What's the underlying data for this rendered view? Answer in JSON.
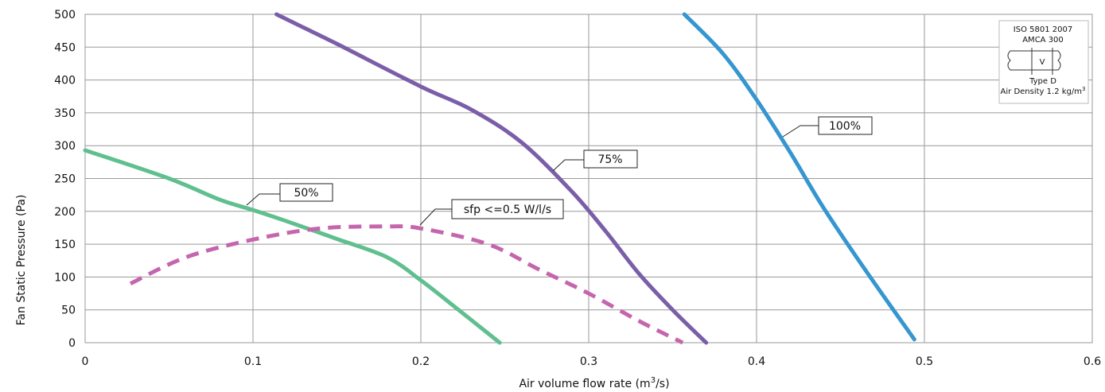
{
  "chart_data": {
    "type": "line",
    "title": "",
    "xlabel": "Air volume flow rate (m",
    "xlabel_sup": "3",
    "xlabel_end": "/s)",
    "ylabel": "Fan Static Pressure (Pa)",
    "xlim": [
      0,
      0.6
    ],
    "ylim": [
      0,
      500
    ],
    "x_ticks": [
      "0",
      "0.1",
      "0.2",
      "0.3",
      "0.4",
      "0.5",
      "0.6"
    ],
    "y_ticks": [
      "0",
      "50",
      "100",
      "150",
      "200",
      "250",
      "300",
      "350",
      "400",
      "450",
      "500"
    ],
    "grid": true,
    "series": [
      {
        "name": "50%",
        "color": "#5fbf8f",
        "dashed": false,
        "points": [
          [
            0,
            293
          ],
          [
            0.05,
            250
          ],
          [
            0.08,
            218
          ],
          [
            0.1,
            202
          ],
          [
            0.12,
            185
          ],
          [
            0.15,
            158
          ],
          [
            0.18,
            130
          ],
          [
            0.2,
            95
          ],
          [
            0.22,
            55
          ],
          [
            0.247,
            0
          ]
        ]
      },
      {
        "name": "75%",
        "color": "#7b5ea8",
        "dashed": false,
        "points": [
          [
            0.114,
            500
          ],
          [
            0.13,
            480
          ],
          [
            0.15,
            455
          ],
          [
            0.2,
            390
          ],
          [
            0.23,
            355
          ],
          [
            0.26,
            305
          ],
          [
            0.29,
            230
          ],
          [
            0.31,
            170
          ],
          [
            0.33,
            105
          ],
          [
            0.35,
            50
          ],
          [
            0.37,
            0
          ]
        ]
      },
      {
        "name": "100%",
        "color": "#3596d0",
        "dashed": false,
        "points": [
          [
            0.357,
            500
          ],
          [
            0.38,
            440
          ],
          [
            0.4,
            370
          ],
          [
            0.42,
            290
          ],
          [
            0.44,
            205
          ],
          [
            0.465,
            110
          ],
          [
            0.494,
            5
          ]
        ]
      },
      {
        "name": "sfp <=0.5 W/l/s",
        "color": "#c566ad",
        "dashed": true,
        "points": [
          [
            0.027,
            90
          ],
          [
            0.06,
            130
          ],
          [
            0.1,
            157
          ],
          [
            0.14,
            174
          ],
          [
            0.18,
            177
          ],
          [
            0.2,
            174
          ],
          [
            0.24,
            150
          ],
          [
            0.27,
            112
          ],
          [
            0.3,
            75
          ],
          [
            0.33,
            33
          ],
          [
            0.356,
            0
          ]
        ]
      }
    ],
    "annotations": [
      {
        "label": "50%"
      },
      {
        "label": "75%"
      },
      {
        "label": "100%"
      },
      {
        "label": "sfp <=0.5 W/l/s"
      }
    ],
    "note": {
      "line1": "ISO 5801 2007",
      "line2": "AMCA 300",
      "v_label": "V",
      "line3": "Type D",
      "line4": "Air Density 1.2 kg/m",
      "line4_sup": "3"
    }
  }
}
